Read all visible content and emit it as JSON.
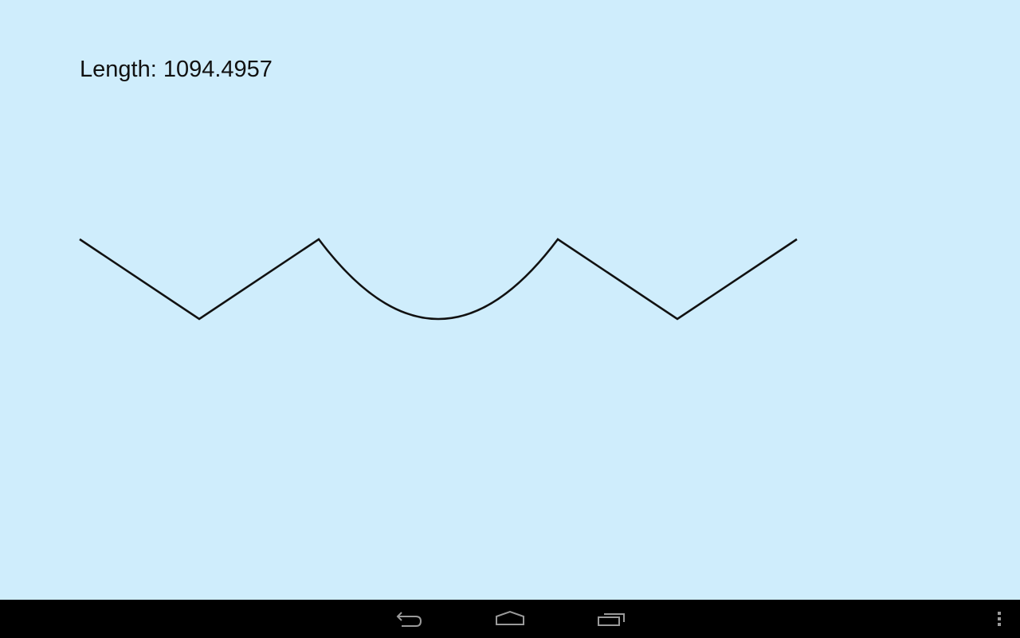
{
  "app": {
    "length_label": "Length: 1094.4957"
  },
  "drawing": {
    "stroke_color": "#111111",
    "background_color": "#cfedfc"
  },
  "navigation": {
    "back_icon": "back-icon",
    "home_icon": "home-icon",
    "recents_icon": "recent-apps-icon",
    "menu_icon": "overflow-menu-icon"
  }
}
